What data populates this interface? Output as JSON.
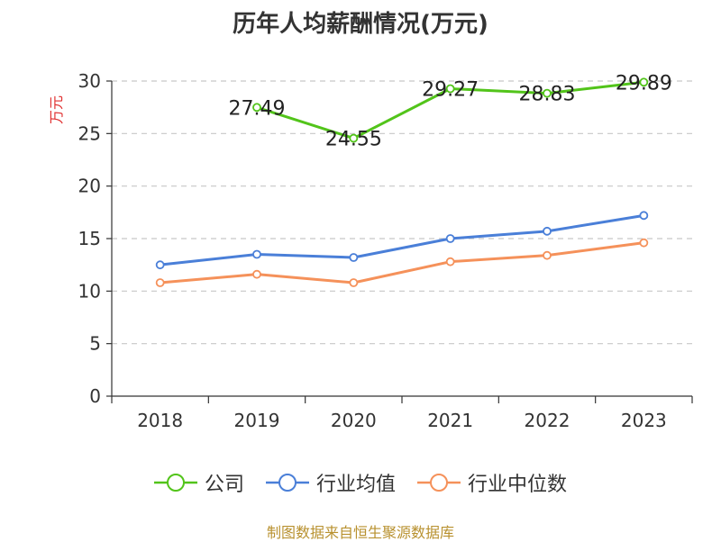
{
  "chart_data": {
    "type": "line",
    "title": "历年人均薪酬情况(万元)",
    "ylabel": "万元",
    "xlabel": "",
    "categories": [
      "2018",
      "2019",
      "2020",
      "2021",
      "2022",
      "2023"
    ],
    "ylim": [
      0,
      30
    ],
    "yticks": [
      0,
      5,
      10,
      15,
      20,
      25,
      30
    ],
    "grid": true,
    "legend_position": "bottom",
    "series": [
      {
        "name": "公司",
        "color": "#52c41a",
        "values": [
          null,
          27.49,
          24.55,
          29.27,
          28.83,
          29.89
        ],
        "labels": [
          null,
          "27.49",
          "24.55",
          "29.27",
          "28.83",
          "29.89"
        ]
      },
      {
        "name": "行业均值",
        "color": "#4a7fd8",
        "values": [
          12.5,
          13.5,
          13.2,
          15.0,
          15.7,
          17.2
        ]
      },
      {
        "name": "行业中位数",
        "color": "#f5915a",
        "values": [
          10.8,
          11.6,
          10.8,
          12.8,
          13.4,
          14.6
        ]
      }
    ]
  },
  "source": "制图数据来自恒生聚源数据库"
}
